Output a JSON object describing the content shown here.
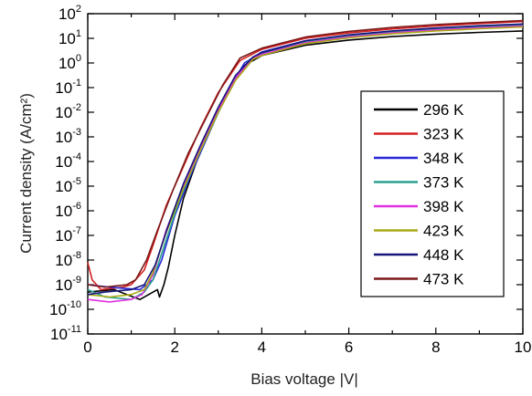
{
  "chart_data": {
    "type": "line",
    "xlabel": "Bias voltage |V|",
    "ylabel": "Current density (A/cm²)",
    "xlim": [
      0,
      10
    ],
    "ylim_log10": [
      -11,
      2
    ],
    "y_scale": "log",
    "grid": false,
    "legend_position": "right",
    "x_ticks": [
      0,
      2,
      4,
      6,
      8,
      10
    ],
    "y_tick_exponents": [
      -11,
      -10,
      -9,
      -8,
      -7,
      -6,
      -5,
      -4,
      -3,
      -2,
      -1,
      0,
      1,
      2
    ],
    "series": [
      {
        "name": "296 K",
        "color": "#000000",
        "points": [
          [
            0,
            -9.3
          ],
          [
            0.6,
            -9.2
          ],
          [
            1.2,
            -9.6
          ],
          [
            1.6,
            -9.2
          ],
          [
            1.65,
            -9.5
          ],
          [
            1.75,
            -9.0
          ],
          [
            1.85,
            -8.3
          ],
          [
            2.0,
            -7.0
          ],
          [
            2.2,
            -5.5
          ],
          [
            2.5,
            -4.0
          ],
          [
            2.8,
            -2.8
          ],
          [
            3.2,
            -1.2
          ],
          [
            3.6,
            -0.1
          ],
          [
            4.0,
            0.3
          ],
          [
            5.0,
            0.72
          ],
          [
            6.0,
            0.93
          ],
          [
            7.0,
            1.07
          ],
          [
            8.0,
            1.17
          ],
          [
            9.0,
            1.24
          ],
          [
            10.0,
            1.3
          ]
        ]
      },
      {
        "name": "323 K",
        "color": "#d42020",
        "points": [
          [
            0,
            -8.1
          ],
          [
            0.1,
            -8.8
          ],
          [
            0.3,
            -9.2
          ],
          [
            0.8,
            -9.1
          ],
          [
            1.0,
            -9.0
          ],
          [
            1.3,
            -8.4
          ],
          [
            1.5,
            -7.4
          ],
          [
            1.8,
            -5.8
          ],
          [
            2.2,
            -4.2
          ],
          [
            2.6,
            -2.6
          ],
          [
            3.0,
            -1.2
          ],
          [
            3.5,
            0.1
          ],
          [
            4.0,
            0.55
          ],
          [
            5.0,
            1.0
          ],
          [
            6.0,
            1.22
          ],
          [
            7.0,
            1.38
          ],
          [
            8.0,
            1.5
          ],
          [
            9.0,
            1.6
          ],
          [
            10.0,
            1.68
          ]
        ]
      },
      {
        "name": "348 K",
        "color": "#2727d8",
        "points": [
          [
            0,
            -9.0
          ],
          [
            0.5,
            -9.1
          ],
          [
            1.2,
            -9.2
          ],
          [
            1.5,
            -8.8
          ],
          [
            1.7,
            -8.0
          ],
          [
            2.0,
            -6.2
          ],
          [
            2.4,
            -4.4
          ],
          [
            2.8,
            -2.8
          ],
          [
            3.2,
            -1.2
          ],
          [
            3.6,
            0.0
          ],
          [
            4.0,
            0.45
          ],
          [
            5.0,
            0.9
          ],
          [
            6.0,
            1.12
          ],
          [
            7.0,
            1.28
          ],
          [
            8.0,
            1.4
          ],
          [
            9.0,
            1.48
          ],
          [
            10.0,
            1.55
          ]
        ]
      },
      {
        "name": "373 K",
        "color": "#2aa090",
        "points": [
          [
            0,
            -9.2
          ],
          [
            0.4,
            -9.5
          ],
          [
            1.0,
            -9.6
          ],
          [
            1.3,
            -9.3
          ],
          [
            1.5,
            -8.8
          ],
          [
            1.8,
            -7.2
          ],
          [
            2.1,
            -5.6
          ],
          [
            2.5,
            -3.9
          ],
          [
            2.9,
            -2.4
          ],
          [
            3.3,
            -0.9
          ],
          [
            3.7,
            0.1
          ],
          [
            4.0,
            0.4
          ],
          [
            5.0,
            0.86
          ],
          [
            6.0,
            1.1
          ],
          [
            7.0,
            1.25
          ],
          [
            8.0,
            1.37
          ],
          [
            9.0,
            1.46
          ],
          [
            10.0,
            1.53
          ]
        ]
      },
      {
        "name": "398 K",
        "color": "#e030e0",
        "points": [
          [
            0,
            -9.6
          ],
          [
            0.5,
            -9.7
          ],
          [
            1.0,
            -9.6
          ],
          [
            1.25,
            -9.4
          ],
          [
            1.5,
            -8.6
          ],
          [
            1.8,
            -6.8
          ],
          [
            2.2,
            -5.0
          ],
          [
            2.6,
            -3.4
          ],
          [
            3.0,
            -1.9
          ],
          [
            3.4,
            -0.6
          ],
          [
            3.8,
            0.2
          ],
          [
            4.0,
            0.35
          ],
          [
            5.0,
            0.82
          ],
          [
            6.0,
            1.06
          ],
          [
            7.0,
            1.22
          ],
          [
            8.0,
            1.34
          ],
          [
            9.0,
            1.43
          ],
          [
            10.0,
            1.5
          ]
        ]
      },
      {
        "name": "423 K",
        "color": "#a8a816",
        "points": [
          [
            0,
            -9.4
          ],
          [
            0.5,
            -9.5
          ],
          [
            1.0,
            -9.4
          ],
          [
            1.3,
            -9.2
          ],
          [
            1.5,
            -8.5
          ],
          [
            1.8,
            -6.9
          ],
          [
            2.2,
            -5.1
          ],
          [
            2.6,
            -3.5
          ],
          [
            3.0,
            -2.0
          ],
          [
            3.4,
            -0.7
          ],
          [
            3.8,
            0.15
          ],
          [
            4.0,
            0.3
          ],
          [
            5.0,
            0.78
          ],
          [
            6.0,
            1.02
          ],
          [
            7.0,
            1.18
          ],
          [
            8.0,
            1.3
          ],
          [
            9.0,
            1.39
          ],
          [
            10.0,
            1.46
          ]
        ]
      },
      {
        "name": "448 K",
        "color": "#15157a",
        "points": [
          [
            0,
            -9.4
          ],
          [
            0.4,
            -9.3
          ],
          [
            1.0,
            -9.2
          ],
          [
            1.3,
            -9.0
          ],
          [
            1.55,
            -8.2
          ],
          [
            1.85,
            -6.6
          ],
          [
            2.2,
            -4.9
          ],
          [
            2.6,
            -3.3
          ],
          [
            3.0,
            -1.8
          ],
          [
            3.4,
            -0.5
          ],
          [
            3.8,
            0.25
          ],
          [
            4.0,
            0.42
          ],
          [
            5.0,
            0.9
          ],
          [
            6.0,
            1.14
          ],
          [
            7.0,
            1.3
          ],
          [
            8.0,
            1.42
          ],
          [
            9.0,
            1.51
          ],
          [
            10.0,
            1.58
          ]
        ]
      },
      {
        "name": "473 K",
        "color": "#7a1818",
        "points": [
          [
            0,
            -9.0
          ],
          [
            0.4,
            -9.1
          ],
          [
            0.9,
            -9.0
          ],
          [
            1.1,
            -8.8
          ],
          [
            1.35,
            -8.0
          ],
          [
            1.6,
            -6.8
          ],
          [
            1.95,
            -5.2
          ],
          [
            2.3,
            -3.7
          ],
          [
            2.7,
            -2.3
          ],
          [
            3.1,
            -0.9
          ],
          [
            3.5,
            0.2
          ],
          [
            4.0,
            0.6
          ],
          [
            5.0,
            1.05
          ],
          [
            6.0,
            1.28
          ],
          [
            7.0,
            1.44
          ],
          [
            8.0,
            1.56
          ],
          [
            9.0,
            1.64
          ],
          [
            10.0,
            1.72
          ]
        ]
      }
    ]
  }
}
